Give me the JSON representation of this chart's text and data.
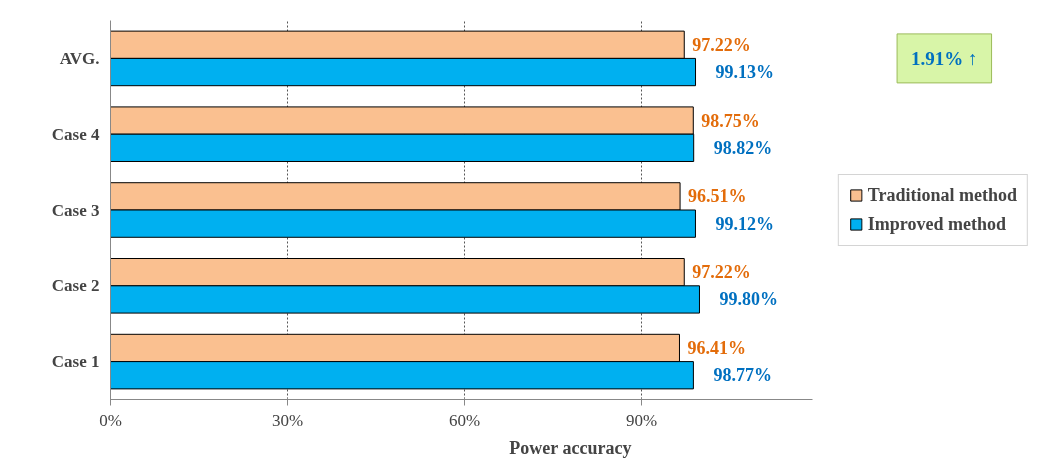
{
  "chart_data": {
    "type": "bar",
    "orientation": "horizontal",
    "xlabel": "Power accuracy",
    "categories": [
      "AVG.",
      "Case 4",
      "Case 3",
      "Case 2",
      "Case 1"
    ],
    "series": [
      {
        "name": "Traditional method",
        "color": "#fac090",
        "values": [
          97.22,
          98.75,
          96.51,
          97.22,
          96.41
        ],
        "value_labels": [
          "97.22%",
          "98.75%",
          "96.51%",
          "97.22%",
          "96.41%"
        ]
      },
      {
        "name": "Improved method",
        "color": "#00b0f0",
        "values": [
          99.13,
          98.82,
          99.12,
          99.8,
          98.77
        ],
        "value_labels": [
          "99.13%",
          "98.82%",
          "99.12%",
          "99.80%",
          "98.77%"
        ]
      }
    ],
    "xlim": [
      0,
      119
    ],
    "xticks": [
      {
        "value": 0,
        "label": "0%"
      },
      {
        "value": 30,
        "label": "30%"
      },
      {
        "value": 60,
        "label": "60%"
      },
      {
        "value": 90,
        "label": "90%"
      }
    ],
    "grid": "x",
    "legend": "right",
    "annotations": [
      "1.91% ↑"
    ]
  }
}
